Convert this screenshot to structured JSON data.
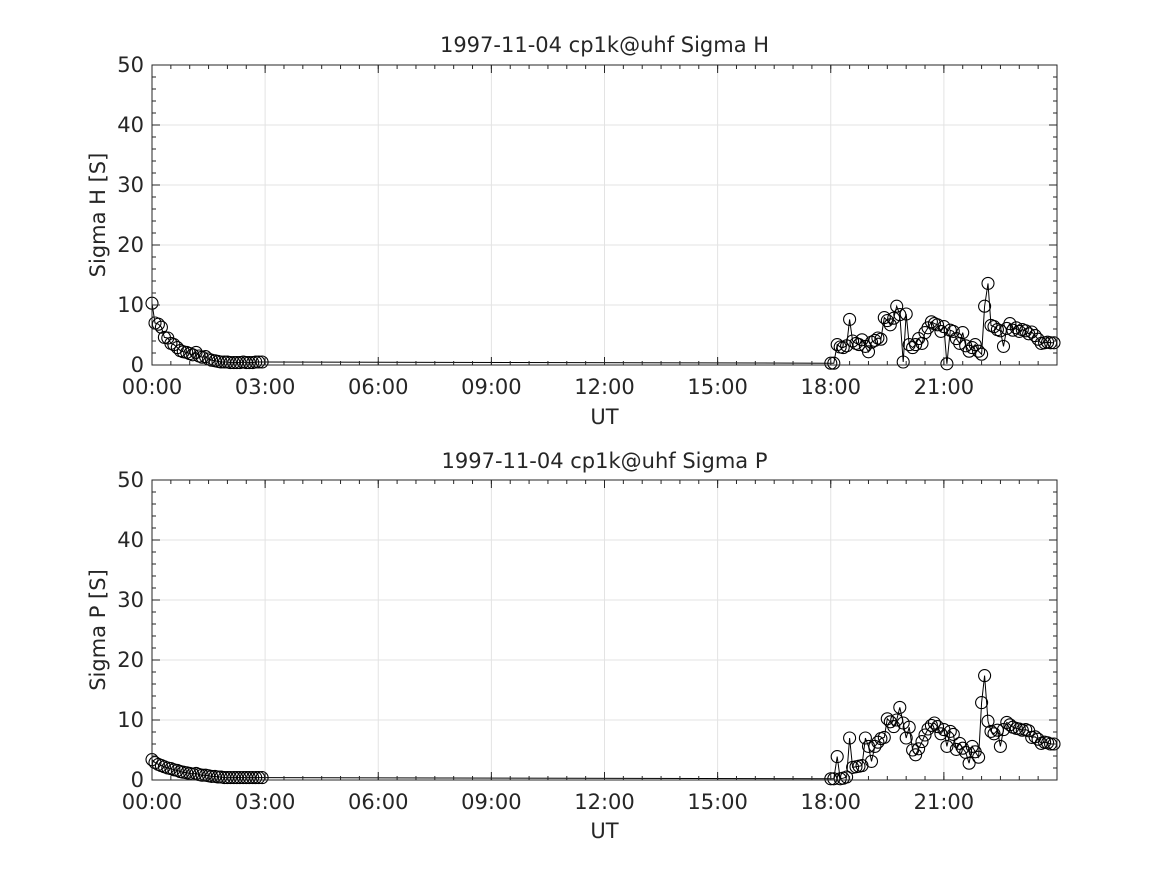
{
  "chart_data": [
    {
      "type": "line",
      "title": "1997-11-04  cp1k@uhf Sigma H",
      "xlabel": "UT",
      "ylabel": "Sigma H [S]",
      "xlim": [
        0,
        24
      ],
      "ylim": [
        0,
        50
      ],
      "xticks": [
        0,
        3,
        6,
        9,
        12,
        15,
        18,
        21
      ],
      "xtick_labels": [
        "00:00",
        "03:00",
        "06:00",
        "09:00",
        "12:00",
        "15:00",
        "18:00",
        "21:00"
      ],
      "yticks": [
        0,
        10,
        20,
        30,
        40,
        50
      ],
      "ytick_labels": [
        "0",
        "10",
        "20",
        "30",
        "40",
        "50"
      ],
      "grid": true,
      "marker": "open-circle",
      "series": [
        {
          "x": [
            0.0,
            0.08,
            0.17,
            0.25,
            0.33,
            0.42,
            0.5,
            0.58,
            0.67,
            0.75,
            0.83,
            0.92,
            1.0,
            1.08,
            1.17,
            1.25,
            1.33,
            1.42,
            1.5,
            1.58,
            1.67,
            1.75,
            1.83,
            1.92,
            2.0,
            2.08,
            2.17,
            2.25,
            2.33,
            2.42,
            2.5,
            2.58,
            2.67,
            2.75,
            2.83,
            2.92,
            18.0,
            18.08,
            18.17,
            18.25,
            18.33,
            18.42,
            18.5,
            18.58,
            18.67,
            18.75,
            18.83,
            18.92,
            19.0,
            19.08,
            19.17,
            19.25,
            19.33,
            19.42,
            19.5,
            19.58,
            19.67,
            19.75,
            19.83,
            19.92,
            20.0,
            20.08,
            20.17,
            20.25,
            20.33,
            20.42,
            20.5,
            20.58,
            20.67,
            20.75,
            20.83,
            20.92,
            21.0,
            21.08,
            21.17,
            21.25,
            21.33,
            21.42,
            21.5,
            21.58,
            21.67,
            21.75,
            21.83,
            21.92,
            22.0,
            22.08,
            22.17,
            22.25,
            22.33,
            22.42,
            22.5,
            22.58,
            22.67,
            22.75,
            22.83,
            22.92,
            23.0,
            23.08,
            23.17,
            23.25,
            23.33,
            23.42,
            23.5,
            23.58,
            23.67,
            23.75,
            23.83,
            23.92
          ],
          "values": [
            10.3,
            7.0,
            6.8,
            6.3,
            4.6,
            4.5,
            3.6,
            3.4,
            2.9,
            2.4,
            2.2,
            2.1,
            1.9,
            1.7,
            2.1,
            1.5,
            1.3,
            1.4,
            1.0,
            0.8,
            0.7,
            0.6,
            0.5,
            0.5,
            0.5,
            0.4,
            0.4,
            0.4,
            0.4,
            0.5,
            0.4,
            0.4,
            0.4,
            0.5,
            0.5,
            0.5,
            0.3,
            0.3,
            3.4,
            3.0,
            2.9,
            3.2,
            7.6,
            4.0,
            3.6,
            3.4,
            4.2,
            3.1,
            2.2,
            3.8,
            4.1,
            4.5,
            4.3,
            7.9,
            7.4,
            6.7,
            7.8,
            9.8,
            8.4,
            0.5,
            8.5,
            3.4,
            2.9,
            3.4,
            4.4,
            3.6,
            5.4,
            6.2,
            7.2,
            6.9,
            6.7,
            5.6,
            6.4,
            0.2,
            5.8,
            5.6,
            4.4,
            3.6,
            5.4,
            3.2,
            2.3,
            2.9,
            3.4,
            2.3,
            1.8,
            9.8,
            13.6,
            6.6,
            6.4,
            5.9,
            5.7,
            3.1,
            6.1,
            6.9,
            5.8,
            6.2,
            5.6,
            5.9,
            5.7,
            5.2,
            5.5,
            4.9,
            4.3,
            3.6,
            3.7,
            3.8,
            3.7,
            3.7
          ]
        }
      ]
    },
    {
      "type": "line",
      "title": "1997-11-04  cp1k@uhf Sigma P",
      "xlabel": "UT",
      "ylabel": "Sigma P [S]",
      "xlim": [
        0,
        24
      ],
      "ylim": [
        0,
        50
      ],
      "xticks": [
        0,
        3,
        6,
        9,
        12,
        15,
        18,
        21
      ],
      "xtick_labels": [
        "00:00",
        "03:00",
        "06:00",
        "09:00",
        "12:00",
        "15:00",
        "18:00",
        "21:00"
      ],
      "yticks": [
        0,
        10,
        20,
        30,
        40,
        50
      ],
      "ytick_labels": [
        "0",
        "10",
        "20",
        "30",
        "40",
        "50"
      ],
      "grid": true,
      "marker": "open-circle",
      "series": [
        {
          "x": [
            0.0,
            0.08,
            0.17,
            0.25,
            0.33,
            0.42,
            0.5,
            0.58,
            0.67,
            0.75,
            0.83,
            0.92,
            1.0,
            1.08,
            1.17,
            1.25,
            1.33,
            1.42,
            1.5,
            1.58,
            1.67,
            1.75,
            1.83,
            1.92,
            2.0,
            2.08,
            2.17,
            2.25,
            2.33,
            2.42,
            2.5,
            2.58,
            2.67,
            2.75,
            2.83,
            2.92,
            18.0,
            18.08,
            18.17,
            18.25,
            18.33,
            18.42,
            18.5,
            18.58,
            18.67,
            18.75,
            18.83,
            18.92,
            19.0,
            19.08,
            19.17,
            19.25,
            19.33,
            19.42,
            19.5,
            19.58,
            19.67,
            19.75,
            19.83,
            19.92,
            20.0,
            20.08,
            20.17,
            20.25,
            20.33,
            20.42,
            20.5,
            20.58,
            20.67,
            20.75,
            20.83,
            20.92,
            21.0,
            21.08,
            21.17,
            21.25,
            21.33,
            21.42,
            21.5,
            21.58,
            21.67,
            21.75,
            21.83,
            21.92,
            22.0,
            22.08,
            22.17,
            22.25,
            22.33,
            22.42,
            22.5,
            22.58,
            22.67,
            22.75,
            22.83,
            22.92,
            23.0,
            23.08,
            23.17,
            23.25,
            23.33,
            23.42,
            23.5,
            23.58,
            23.67,
            23.75,
            23.83,
            23.92
          ],
          "values": [
            3.4,
            2.9,
            2.6,
            2.4,
            2.2,
            2.0,
            1.9,
            1.7,
            1.6,
            1.4,
            1.3,
            1.2,
            1.1,
            1.0,
            1.1,
            0.9,
            0.8,
            0.8,
            0.7,
            0.6,
            0.6,
            0.5,
            0.5,
            0.4,
            0.4,
            0.4,
            0.4,
            0.4,
            0.4,
            0.4,
            0.4,
            0.4,
            0.4,
            0.4,
            0.4,
            0.4,
            0.2,
            0.2,
            3.9,
            0.2,
            0.3,
            0.5,
            7.0,
            2.1,
            2.2,
            2.3,
            2.4,
            7.0,
            5.6,
            3.1,
            5.6,
            6.3,
            6.9,
            7.1,
            10.2,
            9.7,
            8.9,
            10.0,
            12.1,
            9.5,
            7.0,
            8.8,
            5.0,
            4.2,
            5.2,
            6.4,
            7.5,
            8.5,
            9.1,
            9.5,
            8.9,
            7.7,
            8.4,
            5.6,
            8.1,
            7.6,
            5.1,
            6.1,
            5.3,
            4.6,
            2.8,
            5.6,
            4.7,
            3.8,
            12.9,
            17.4,
            9.8,
            8.1,
            7.7,
            8.3,
            5.6,
            8.4,
            9.6,
            9.2,
            8.8,
            8.6,
            8.5,
            8.3,
            8.4,
            8.2,
            7.1,
            7.2,
            6.8,
            6.1,
            6.3,
            6.2,
            6.0,
            6.0
          ]
        }
      ]
    }
  ]
}
